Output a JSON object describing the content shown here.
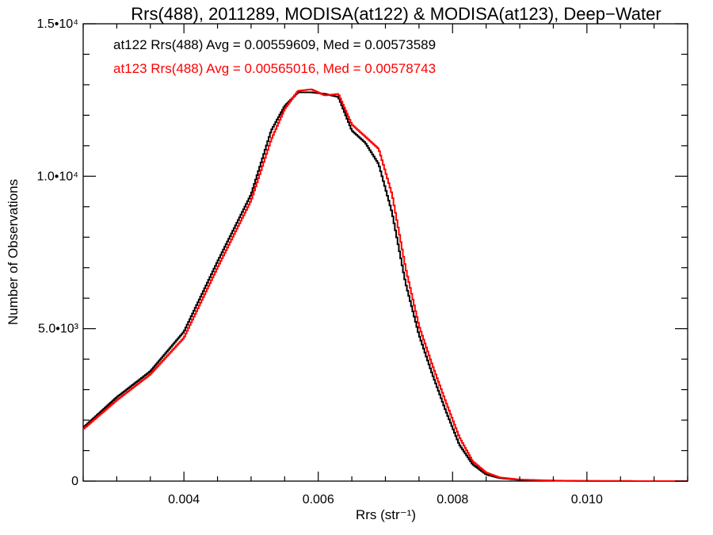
{
  "chart_data": {
    "type": "line",
    "title": "Rrs(488), 2011289, MODISA(at122) & MODISA(at123), Deep−Water",
    "xlabel": "Rrs (str⁻¹)",
    "ylabel": "Number of Observations",
    "xlim": [
      0.0025,
      0.0115
    ],
    "ylim": [
      0,
      15000
    ],
    "x_ticks": [
      {
        "value": 0.004,
        "label": "0.004"
      },
      {
        "value": 0.006,
        "label": "0.006"
      },
      {
        "value": 0.008,
        "label": "0.008"
      },
      {
        "value": 0.01,
        "label": "0.010"
      }
    ],
    "y_ticks": [
      {
        "value": 0,
        "label": "0"
      },
      {
        "value": 5000,
        "label": "5.0•10³"
      },
      {
        "value": 10000,
        "label": "1.0•10⁴"
      },
      {
        "value": 15000,
        "label": "1.5•10⁴"
      }
    ],
    "grid": false,
    "legend_position": "top-left",
    "x": [
      0.0025,
      0.003,
      0.0035,
      0.004,
      0.0045,
      0.005,
      0.0053,
      0.0055,
      0.0057,
      0.0059,
      0.0061,
      0.0063,
      0.0065,
      0.0067,
      0.0069,
      0.0071,
      0.0073,
      0.0075,
      0.0077,
      0.0079,
      0.0081,
      0.0083,
      0.0085,
      0.0087,
      0.009,
      0.0095,
      0.01,
      0.011,
      0.0115
    ],
    "series": [
      {
        "name": "at122 Rrs(488) Avg = 0.00559609, Med = 0.00573589",
        "color": "#000000",
        "values": [
          1750,
          2750,
          3600,
          4900,
          7200,
          9400,
          11500,
          12300,
          12750,
          12750,
          12700,
          12600,
          11500,
          11100,
          10400,
          8800,
          6500,
          4800,
          3500,
          2300,
          1200,
          550,
          220,
          100,
          40,
          15,
          5,
          0,
          0
        ]
      },
      {
        "name": "at123 Rrs(488) Avg = 0.00565016, Med = 0.00578743",
        "color": "#ff0000",
        "values": [
          1700,
          2650,
          3500,
          4700,
          7000,
          9200,
          11200,
          12200,
          12800,
          12850,
          12650,
          12700,
          11700,
          11300,
          10900,
          9400,
          7000,
          5100,
          3800,
          2600,
          1450,
          650,
          280,
          120,
          50,
          18,
          6,
          0,
          0
        ]
      }
    ]
  }
}
